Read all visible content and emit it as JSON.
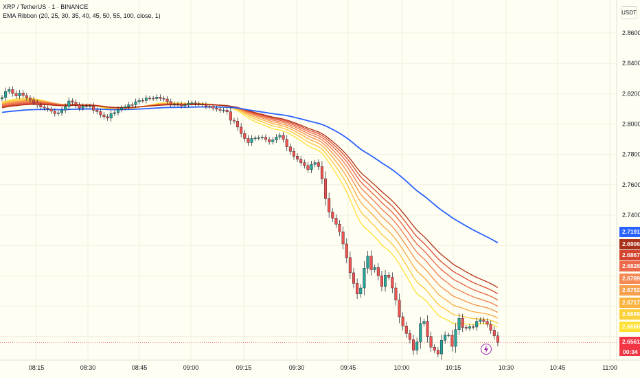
{
  "header": {
    "title": "XRP / TetherUS · 1 · BINANCE",
    "indicator": "EMA Ribbon (20, 25, 30, 35, 40, 45, 50, 55, 100, close, 1)",
    "currency": "USDT"
  },
  "chart_data": {
    "type": "candlestick",
    "x_tick_labels": [
      "08:15",
      "08:30",
      "08:45",
      "09:00",
      "09:15",
      "09:30",
      "09:45",
      "10:00",
      "10:15",
      "10:30",
      "10:45",
      "11:00"
    ],
    "y_tick_labels": [
      "2.8600",
      "2.8400",
      "2.8200",
      "2.8000",
      "2.7800",
      "2.7600",
      "2.7400"
    ],
    "ylim": [
      2.6475,
      2.8745
    ],
    "grid": true,
    "candle_colors": {
      "up": "#26a69a",
      "down": "#ef5350"
    },
    "closes": [
      2.8175,
      2.8215,
      2.8228,
      2.8202,
      2.8185,
      2.8205,
      2.8188,
      2.8172,
      2.816,
      2.8143,
      2.8125,
      2.8112,
      2.8106,
      2.8098,
      2.8085,
      2.8069,
      2.8074,
      2.8092,
      2.8115,
      2.8152,
      2.8143,
      2.8125,
      2.8105,
      2.8118,
      2.812,
      2.812,
      2.8091,
      2.8082,
      2.8061,
      2.8048,
      2.8039,
      2.8069,
      2.8075,
      2.8095,
      2.8107,
      2.8114,
      2.8128,
      2.8127,
      2.8147,
      2.8156,
      2.8155,
      2.8171,
      2.817,
      2.8168,
      2.8178,
      2.8169,
      2.8165,
      2.8148,
      2.8129,
      2.8133,
      2.8131,
      2.812,
      2.8126,
      2.8137,
      2.8139,
      2.8135,
      2.8131,
      2.8128,
      2.8116,
      2.8115,
      2.8105,
      2.8098,
      2.809,
      2.8092,
      2.8081,
      2.8025,
      2.8019,
      2.798,
      2.7938,
      2.7905,
      2.7878,
      2.7905,
      2.7908,
      2.791,
      2.7913,
      2.7898,
      2.7883,
      2.7895,
      2.7914,
      2.7926,
      2.7899,
      2.785,
      2.782,
      2.7788,
      2.7769,
      2.7746,
      2.7727,
      2.77,
      2.7734,
      2.7746,
      2.772,
      2.764,
      2.751,
      2.742,
      2.738,
      2.734,
      2.729,
      2.721,
      2.712,
      2.702,
      2.695,
      2.688,
      2.692,
      2.705,
      2.713,
      2.704,
      2.7055,
      2.7,
      2.693,
      2.7005,
      2.699,
      2.692,
      2.684,
      2.673,
      2.667,
      2.662,
      2.658,
      2.651,
      2.6565,
      2.6685,
      2.67,
      2.66,
      2.653,
      2.651,
      2.6485,
      2.6575,
      2.661,
      2.661,
      2.6535,
      2.6645,
      2.672,
      2.666,
      2.6655,
      2.6665,
      2.6662,
      2.67,
      2.671,
      2.67,
      2.668,
      2.6642,
      2.6605,
      2.6561
    ],
    "series": [
      {
        "name": "EMA 20",
        "color": "#ffe033",
        "last": 2.6668
      },
      {
        "name": "EMA 25",
        "color": "#fec538",
        "last": 2.6689
      },
      {
        "name": "EMA 30",
        "color": "#fba93e",
        "last": 2.6717
      },
      {
        "name": "EMA 35",
        "color": "#f69045",
        "last": 2.6752
      },
      {
        "name": "EMA 40",
        "color": "#f0784a",
        "last": 2.6789
      },
      {
        "name": "EMA 45",
        "color": "#e76042",
        "last": 2.6828
      },
      {
        "name": "EMA 50",
        "color": "#d9472f",
        "last": 2.6867
      },
      {
        "name": "EMA 55",
        "color": "#b03017",
        "last": 2.6906
      },
      {
        "name": "EMA 100",
        "color": "#2962ff",
        "last": 2.7191
      }
    ],
    "last_price": {
      "label": "2.6561",
      "countdown": "00:34",
      "color": "#f23645"
    },
    "price_labels": [
      "2.7191",
      "2.6906",
      "2.6867",
      "2.6828",
      "2.6789",
      "2.6752",
      "2.6717",
      "2.6689",
      "2.6668",
      "2.6561"
    ]
  }
}
